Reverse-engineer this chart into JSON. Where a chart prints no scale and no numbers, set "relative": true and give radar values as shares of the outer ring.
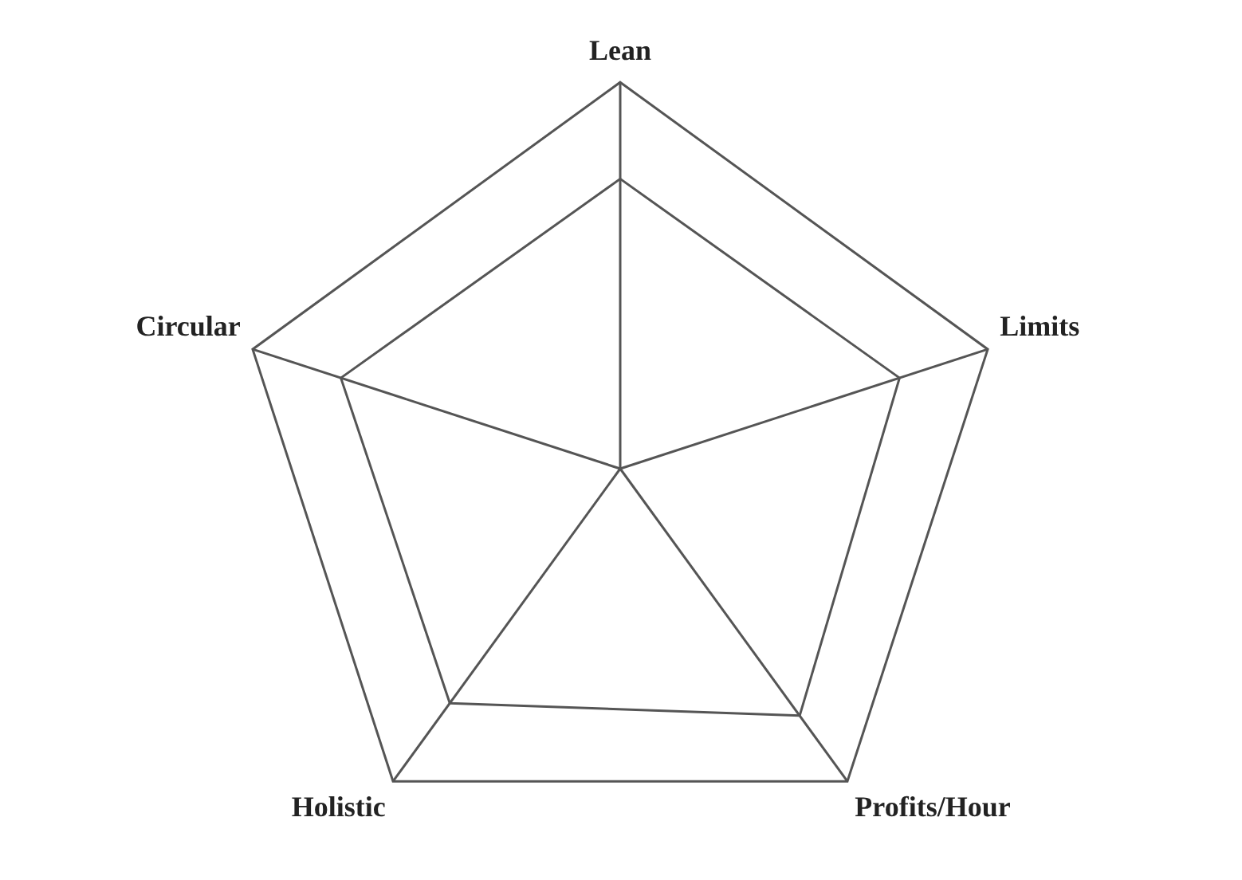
{
  "chart_data": {
    "type": "radar",
    "relative": true,
    "categories": [
      "Lean",
      "Limits",
      "Profits/Hour",
      "Holistic",
      "Circular"
    ],
    "series": [
      {
        "color": "#555555",
        "values": [
          0.75,
          0.76,
          0.79,
          0.75,
          0.76
        ]
      }
    ],
    "grid": true,
    "legend": false,
    "marker": "none",
    "line_style": "solid"
  }
}
